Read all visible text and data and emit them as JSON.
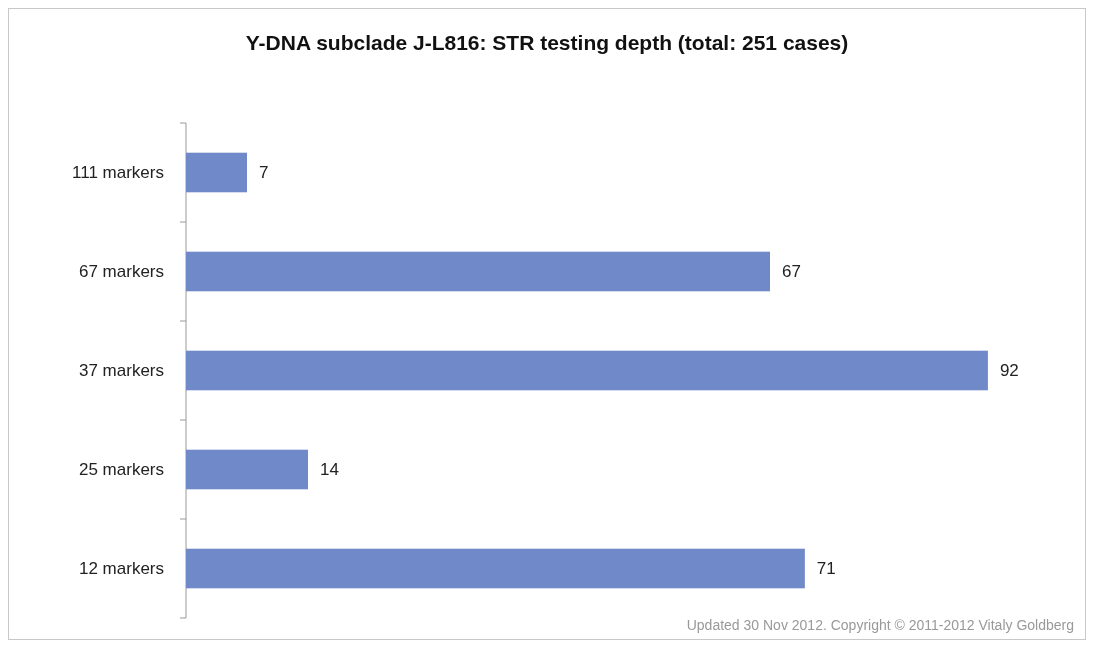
{
  "chart_data": {
    "type": "bar",
    "orientation": "horizontal",
    "title": "Y-DNA subclade J-L816: STR testing depth (total: 251 cases)",
    "categories": [
      "111 markers",
      "67 markers",
      "37 markers",
      "25 markers",
      "12 markers"
    ],
    "values": [
      7,
      67,
      92,
      14,
      71
    ],
    "color": "#7089c9",
    "data_labels": true,
    "annotations": [
      "Updated 30 Nov 2012. Copyright © 2011-2012 Vitaly Goldberg"
    ]
  }
}
